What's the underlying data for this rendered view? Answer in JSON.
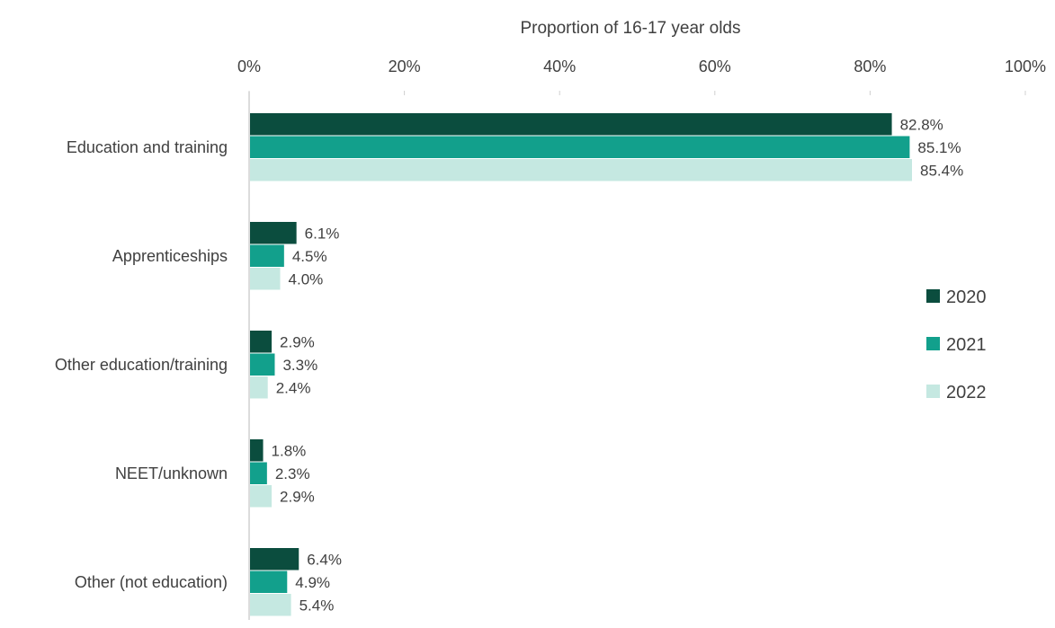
{
  "chart_data": {
    "type": "bar",
    "orientation": "horizontal",
    "xlabel": "Proportion of 16-17 year olds",
    "xlim": [
      0,
      100
    ],
    "x_ticks": [
      "0%",
      "20%",
      "40%",
      "60%",
      "80%",
      "100%"
    ],
    "categories": [
      "Education and training",
      "Apprenticeships",
      "Other education/training",
      "NEET/unknown",
      "Other (not education)"
    ],
    "series": [
      {
        "name": "2020",
        "color": "#0b4d3e",
        "values": [
          82.8,
          6.1,
          2.9,
          1.8,
          6.4
        ],
        "labels": [
          "82.8%",
          "6.1%",
          "2.9%",
          "1.8%",
          "6.4%"
        ]
      },
      {
        "name": "2021",
        "color": "#12a08c",
        "values": [
          85.1,
          4.5,
          3.3,
          2.3,
          4.9
        ],
        "labels": [
          "85.1%",
          "4.5%",
          "3.3%",
          "2.3%",
          "4.9%"
        ]
      },
      {
        "name": "2022",
        "color": "#c5e8e1",
        "values": [
          85.4,
          4.0,
          2.4,
          2.9,
          5.4
        ],
        "labels": [
          "85.4%",
          "4.0%",
          "2.4%",
          "2.9%",
          "5.4%"
        ]
      }
    ],
    "legend": {
      "position": "right"
    },
    "grid": true,
    "colors": {
      "axis": "#d0d0d0",
      "text": "#404040"
    }
  }
}
